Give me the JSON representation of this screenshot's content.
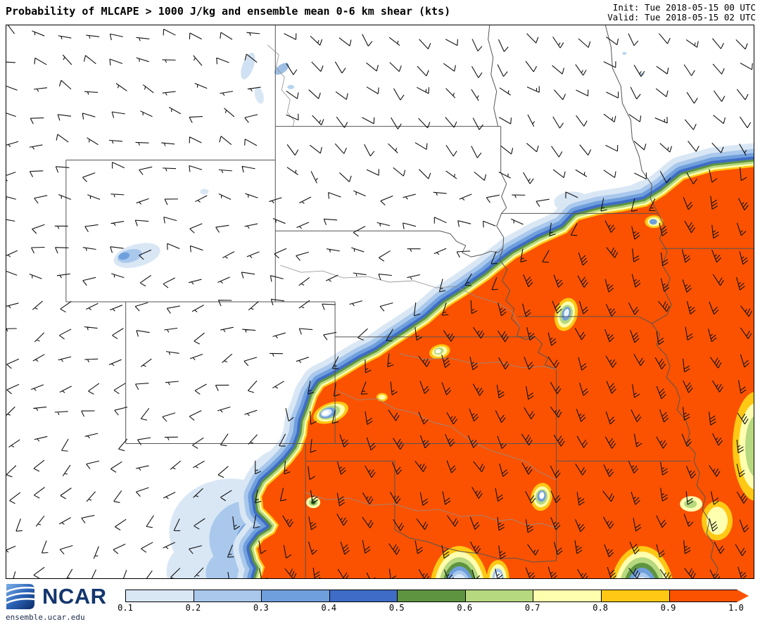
{
  "header": {
    "title": "Probability of MLCAPE > 1000 J/kg and ensemble mean 0-6 km shear (kts)",
    "init": "Init: Tue 2018-05-15 00 UTC",
    "valid": "Valid: Tue 2018-05-15 02 UTC"
  },
  "footer": {
    "logo": "NCAR",
    "url": "ensemble.ucar.edu"
  },
  "colorbar": {
    "ticks": [
      "0.1",
      "0.2",
      "0.3",
      "0.4",
      "0.5",
      "0.6",
      "0.7",
      "0.8",
      "0.9",
      "1.0"
    ],
    "colors": [
      "#d9e7f5",
      "#a9c8ec",
      "#6f9fdc",
      "#3f6cc6",
      "#5e9440",
      "#b6d87f",
      "#ffffb0",
      "#ffc814",
      "#fa5200"
    ]
  },
  "chart_data": {
    "type": "heatmap",
    "title": "Probability of MLCAPE > 1000 J/kg and ensemble mean 0-6 km shear (kts)",
    "init_time": "Tue 2018-05-15 00 UTC",
    "valid_time": "Tue 2018-05-15 02 UTC",
    "region": "Central United States (Northern and Central Plains, mid-Mississippi Valley)",
    "field": "Probability of MLCAPE > 1000 J/kg",
    "overlay": "Ensemble mean 0-6 km shear wind barbs (kts)",
    "colorbar": {
      "orientation": "horizontal",
      "ticks": [
        0.1,
        0.2,
        0.3,
        0.4,
        0.5,
        0.6,
        0.7,
        0.8,
        0.9,
        1.0
      ],
      "colors": [
        "#d9e7f5",
        "#a9c8ec",
        "#6f9fdc",
        "#3f6cc6",
        "#5e9440",
        "#b6d87f",
        "#ffffb0",
        "#ffc814",
        "#fa5200"
      ]
    },
    "summary": "Probabilities near 1.0 (orange-red) cover eastern Kansas, Oklahoma, Missouri, Arkansas and the mid-Mississippi valley, with a sharp northwest gradient (thin yellow-green-blue fringe) running from eastern Nebraska southwest into the Texas panhandle; broader low-probability blues over the Texas/Oklahoma panhandles; isolated 0.1-0.3 patches over northeast Wyoming and western North Dakota; moderate southerly-southeasterly shear barbs (15-30 kts) within the high-probability area and light westerly barbs (5-10 kts) to the northwest.",
    "source": "ensemble.ucar.edu"
  }
}
